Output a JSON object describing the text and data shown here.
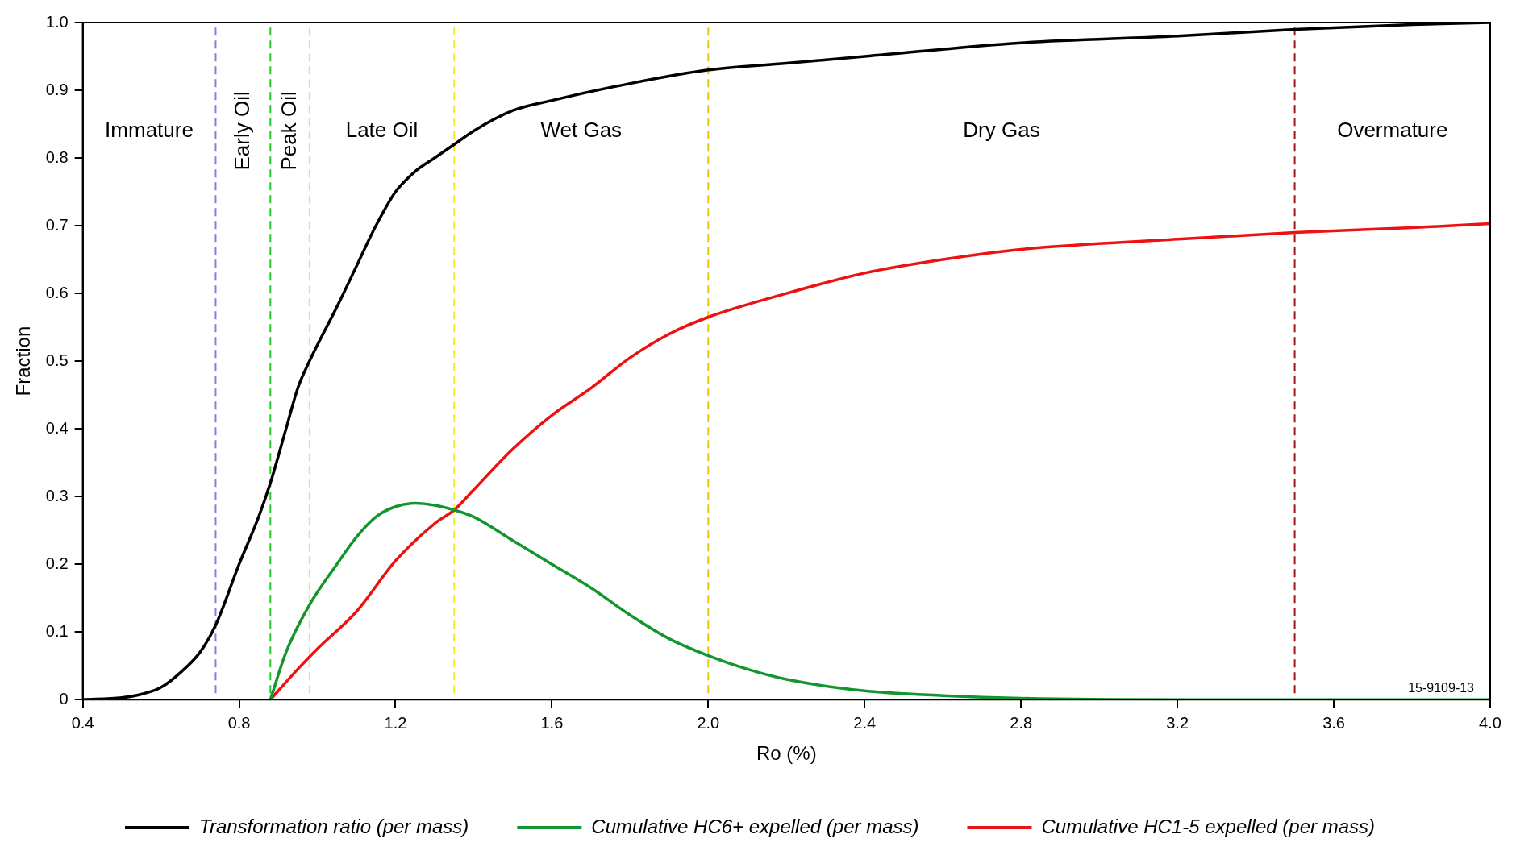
{
  "chart_data": {
    "type": "line",
    "xlabel": "Ro (%)",
    "ylabel": "Fraction",
    "xlim": [
      0.4,
      4.0
    ],
    "xticks": [
      0.4,
      0.8,
      1.2,
      1.6,
      {
        "value": 2,
        "label": "2.0"
      },
      2.4,
      2.8,
      3.2,
      3.6,
      {
        "value": 4,
        "label": "4.0"
      }
    ],
    "ylim": [
      0,
      1
    ],
    "yticks": [
      0,
      0.1,
      0.2,
      0.3,
      0.4,
      0.5,
      0.6,
      0.7,
      0.8,
      0.9,
      {
        "value": 1,
        "label": "1.0"
      }
    ],
    "grid": false,
    "legend": "bottom",
    "marker": "none",
    "line_style": "solid",
    "series": [
      {
        "name": "Transformation ratio (per mass)",
        "color": "#000000",
        "x": [
          0.4,
          0.5,
          0.55,
          0.6,
          0.65,
          0.7,
          0.74,
          0.8,
          0.85,
          0.88,
          0.92,
          0.95,
          0.98,
          1.05,
          1.1,
          1.15,
          1.2,
          1.25,
          1.3,
          1.35,
          1.4,
          1.5,
          1.6,
          1.8,
          2.0,
          2.2,
          2.4,
          2.8,
          3.2,
          3.5,
          3.8,
          4.0
        ],
        "values": [
          0,
          0.003,
          0.008,
          0.018,
          0.04,
          0.07,
          0.11,
          0.2,
          0.27,
          0.32,
          0.4,
          0.46,
          0.5,
          0.58,
          0.64,
          0.7,
          0.75,
          0.78,
          0.8,
          0.82,
          0.84,
          0.87,
          0.885,
          0.91,
          0.93,
          0.94,
          0.95,
          0.97,
          0.98,
          0.99,
          0.997,
          1.0
        ]
      },
      {
        "name": "Cumulative HC6+ expelled (per mass)",
        "color": "#12962e",
        "x": [
          0.88,
          0.92,
          0.98,
          1.05,
          1.1,
          1.15,
          1.2,
          1.25,
          1.3,
          1.35,
          1.4,
          1.5,
          1.6,
          1.7,
          1.8,
          1.9,
          2.0,
          2.1,
          2.2,
          2.4,
          2.6,
          2.8,
          3.2,
          4.0
        ],
        "values": [
          0,
          0.07,
          0.14,
          0.2,
          0.24,
          0.27,
          0.285,
          0.29,
          0.287,
          0.28,
          0.27,
          0.235,
          0.2,
          0.165,
          0.125,
          0.09,
          0.065,
          0.045,
          0.03,
          0.013,
          0.006,
          0.002,
          0,
          0
        ]
      },
      {
        "name": "Cumulative HC1-5 expelled (per mass)",
        "color": "#ee1111",
        "x": [
          0.88,
          0.95,
          1.0,
          1.1,
          1.2,
          1.3,
          1.35,
          1.4,
          1.5,
          1.6,
          1.7,
          1.8,
          1.9,
          2.0,
          2.2,
          2.4,
          2.6,
          2.8,
          3.2,
          3.5,
          3.8,
          4.0
        ],
        "values": [
          0,
          0.045,
          0.075,
          0.13,
          0.205,
          0.26,
          0.28,
          0.31,
          0.37,
          0.42,
          0.46,
          0.505,
          0.54,
          0.565,
          0.6,
          0.63,
          0.65,
          0.665,
          0.68,
          0.69,
          0.697,
          0.703
        ]
      }
    ],
    "ref_lines": [
      {
        "axis": "x",
        "value": 0.74,
        "color": "#8a7fd6",
        "line_style": "dashed"
      },
      {
        "axis": "x",
        "value": 0.88,
        "color": "#22cc22",
        "line_style": "dashed"
      },
      {
        "axis": "x",
        "value": 0.98,
        "color": "#c8f080",
        "line_style": "dashed"
      },
      {
        "axis": "x",
        "value": 1.35,
        "color": "#f0f020",
        "line_style": "dashed"
      },
      {
        "axis": "x",
        "value": 2.0,
        "color": "#e8c800",
        "line_style": "dashed"
      },
      {
        "axis": "x",
        "value": 3.5,
        "color": "#a01818",
        "line_style": "dashed"
      }
    ],
    "annotations": [
      "Immature",
      "Early Oil",
      "Peak Oil",
      "Late Oil",
      "Wet Gas",
      "Dry Gas",
      "Overmature",
      "15-9109-13"
    ]
  }
}
